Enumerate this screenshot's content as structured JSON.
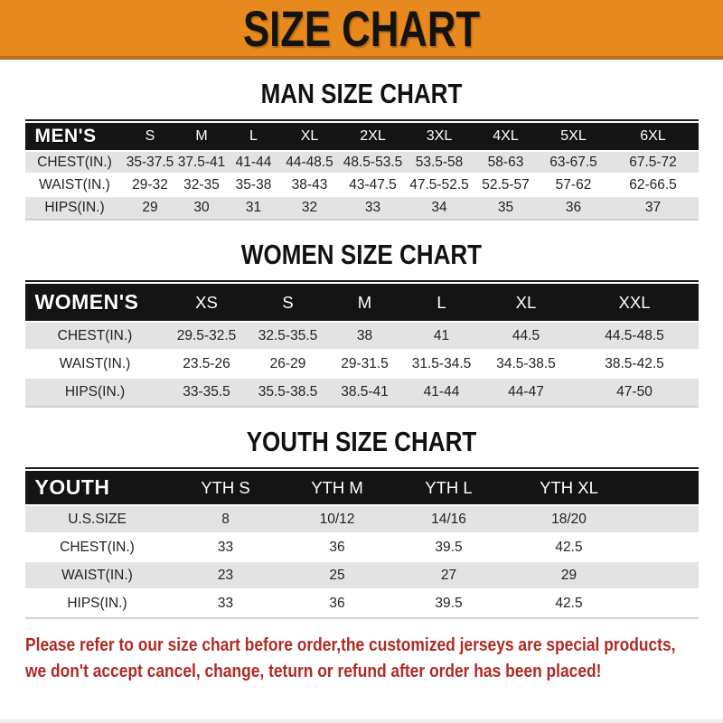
{
  "banner": {
    "title": "SIZE CHART"
  },
  "colors": {
    "banner_bg": "#e8891e",
    "banner_edge": "#bb6e1a",
    "header_bar_bg": "#141414",
    "row_stripe": "#e3e3e3",
    "footer_red": "#b02a23"
  },
  "sections": [
    {
      "heading": "MAN SIZE CHART",
      "bar_label": "MEN'S",
      "columns": [
        "S",
        "M",
        "L",
        "XL",
        "2XL",
        "3XL",
        "4XL",
        "5XL",
        "6XL"
      ],
      "rows": [
        {
          "label": "CHEST(IN.)",
          "values": [
            "35-37.5",
            "37.5-41",
            "41-44",
            "44-48.5",
            "48.5-53.5",
            "53.5-58",
            "58-63",
            "63-67.5",
            "67.5-72"
          ]
        },
        {
          "label": "WAIST(IN.)",
          "values": [
            "29-32",
            "32-35",
            "35-38",
            "38-43",
            "43-47.5",
            "47.5-52.5",
            "52.5-57",
            "57-62",
            "62-66.5"
          ]
        },
        {
          "label": "HIPS(IN.)",
          "values": [
            "29",
            "30",
            "31",
            "32",
            "33",
            "34",
            "35",
            "36",
            "37"
          ]
        }
      ]
    },
    {
      "heading": "WOMEN SIZE CHART",
      "bar_label": "WOMEN'S",
      "columns": [
        "XS",
        "S",
        "M",
        "L",
        "XL",
        "XXL"
      ],
      "rows": [
        {
          "label": "CHEST(IN.)",
          "values": [
            "29.5-32.5",
            "32.5-35.5",
            "38",
            "41",
            "44.5",
            "44.5-48.5"
          ]
        },
        {
          "label": "WAIST(IN.)",
          "values": [
            "23.5-26",
            "26-29",
            "29-31.5",
            "31.5-34.5",
            "34.5-38.5",
            "38.5-42.5"
          ]
        },
        {
          "label": "HIPS(IN.)",
          "values": [
            "33-35.5",
            "35.5-38.5",
            "38.5-41",
            "41-44",
            "44-47",
            "47-50"
          ]
        }
      ]
    },
    {
      "heading": "YOUTH SIZE CHART",
      "bar_label": "YOUTH",
      "columns": [
        "YTH S",
        "YTH M",
        "YTH L",
        "YTH XL"
      ],
      "rows": [
        {
          "label": "U.S.SIZE",
          "values": [
            "8",
            "10/12",
            "14/16",
            "18/20"
          ]
        },
        {
          "label": "CHEST(IN.)",
          "values": [
            "33",
            "36",
            "39.5",
            "42.5"
          ]
        },
        {
          "label": "WAIST(IN.)",
          "values": [
            "23",
            "25",
            "27",
            "29"
          ]
        },
        {
          "label": "HIPS(IN.)",
          "values": [
            "33",
            "36",
            "39.5",
            "42.5"
          ]
        }
      ]
    }
  ],
  "footer": {
    "line1": "Please refer to our size chart before order,the customized jerseys are special products,",
    "line2": "we don't accept cancel, change, teturn or refund after order has been placed!"
  }
}
